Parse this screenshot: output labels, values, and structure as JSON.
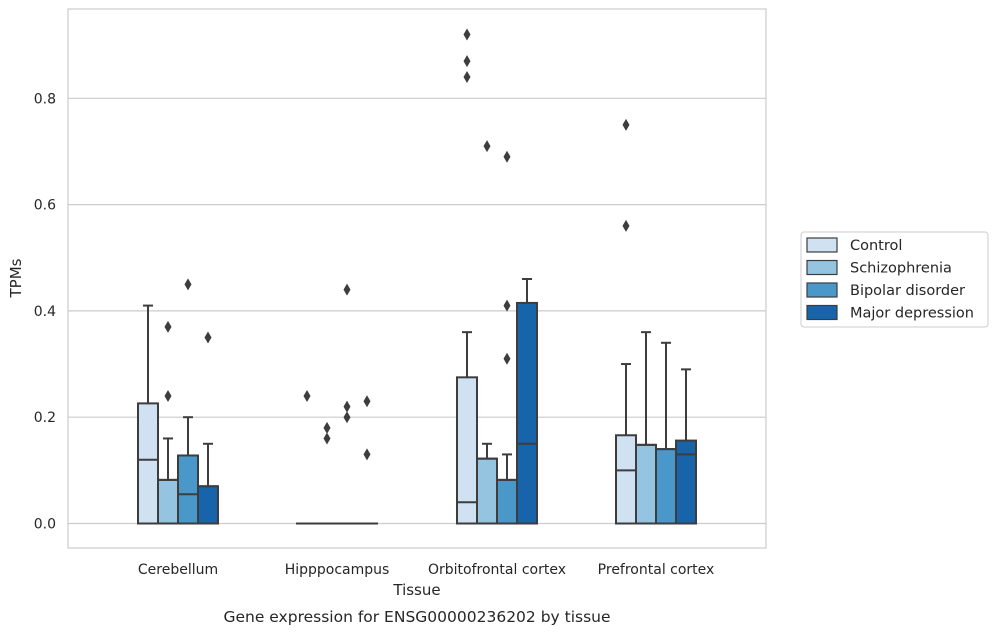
{
  "chart_data": {
    "type": "boxplot",
    "xlabel": "Tissue",
    "ylabel": "TPMs",
    "caption": "Gene expression for ENSG00000236202 by tissue",
    "ylim": [
      -0.045,
      0.965
    ],
    "yticks": [
      0.0,
      0.2,
      0.4,
      0.6,
      0.8
    ],
    "ytick_labels": [
      "0.0",
      "0.2",
      "0.4",
      "0.6",
      "0.8"
    ],
    "grid": "horizontal",
    "legend_position": "right",
    "categories": [
      "Cerebellum",
      "Hipppocampus",
      "Orbitofrontal cortex",
      "Prefrontal cortex"
    ],
    "series": [
      {
        "name": "Control",
        "color": "#d0e1f2",
        "boxes": [
          {
            "q1": 0.0,
            "median": 0.12,
            "q3": 0.226,
            "whisker_low": 0.0,
            "whisker_high": 0.41,
            "outliers": []
          },
          {
            "q1": 0.0,
            "median": 0.0,
            "q3": 0.0,
            "whisker_low": 0.0,
            "whisker_high": 0.0,
            "outliers": [
              0.24
            ]
          },
          {
            "q1": 0.0,
            "median": 0.04,
            "q3": 0.275,
            "whisker_low": 0.0,
            "whisker_high": 0.36,
            "outliers": [
              0.84,
              0.87,
              0.92
            ]
          },
          {
            "q1": 0.0,
            "median": 0.1,
            "q3": 0.166,
            "whisker_low": 0.0,
            "whisker_high": 0.3,
            "outliers": [
              0.56,
              0.75
            ]
          }
        ]
      },
      {
        "name": "Schizophrenia",
        "color": "#94c4df",
        "boxes": [
          {
            "q1": 0.0,
            "median": 0.082,
            "q3": 0.082,
            "whisker_low": 0.0,
            "whisker_high": 0.16,
            "outliers": [
              0.24,
              0.37
            ]
          },
          {
            "q1": 0.0,
            "median": 0.0,
            "q3": 0.0,
            "whisker_low": 0.0,
            "whisker_high": 0.0,
            "outliers": [
              0.16,
              0.18
            ]
          },
          {
            "q1": 0.0,
            "median": 0.122,
            "q3": 0.122,
            "whisker_low": 0.0,
            "whisker_high": 0.15,
            "outliers": [
              0.71
            ]
          },
          {
            "q1": 0.0,
            "median": 0.148,
            "q3": 0.148,
            "whisker_low": 0.0,
            "whisker_high": 0.36,
            "outliers": []
          }
        ]
      },
      {
        "name": "Bipolar disorder",
        "color": "#4a98c9",
        "boxes": [
          {
            "q1": 0.0,
            "median": 0.055,
            "q3": 0.128,
            "whisker_low": 0.0,
            "whisker_high": 0.2,
            "outliers": [
              0.45
            ]
          },
          {
            "q1": 0.0,
            "median": 0.0,
            "q3": 0.0,
            "whisker_low": 0.0,
            "whisker_high": 0.0,
            "outliers": [
              0.2,
              0.22,
              0.44
            ]
          },
          {
            "q1": 0.0,
            "median": 0.082,
            "q3": 0.082,
            "whisker_low": 0.0,
            "whisker_high": 0.13,
            "outliers": [
              0.31,
              0.41,
              0.69
            ]
          },
          {
            "q1": 0.0,
            "median": 0.14,
            "q3": 0.14,
            "whisker_low": 0.0,
            "whisker_high": 0.34,
            "outliers": []
          }
        ]
      },
      {
        "name": "Major depression",
        "color": "#1764ab",
        "boxes": [
          {
            "q1": 0.0,
            "median": 0.07,
            "q3": 0.07,
            "whisker_low": 0.0,
            "whisker_high": 0.15,
            "outliers": [
              0.35
            ]
          },
          {
            "q1": 0.0,
            "median": 0.0,
            "q3": 0.0,
            "whisker_low": 0.0,
            "whisker_high": 0.0,
            "outliers": [
              0.13,
              0.23
            ]
          },
          {
            "q1": 0.0,
            "median": 0.15,
            "q3": 0.415,
            "whisker_low": 0.0,
            "whisker_high": 0.46,
            "outliers": []
          },
          {
            "q1": 0.0,
            "median": 0.13,
            "q3": 0.156,
            "whisker_low": 0.0,
            "whisker_high": 0.29,
            "outliers": []
          }
        ]
      }
    ]
  }
}
